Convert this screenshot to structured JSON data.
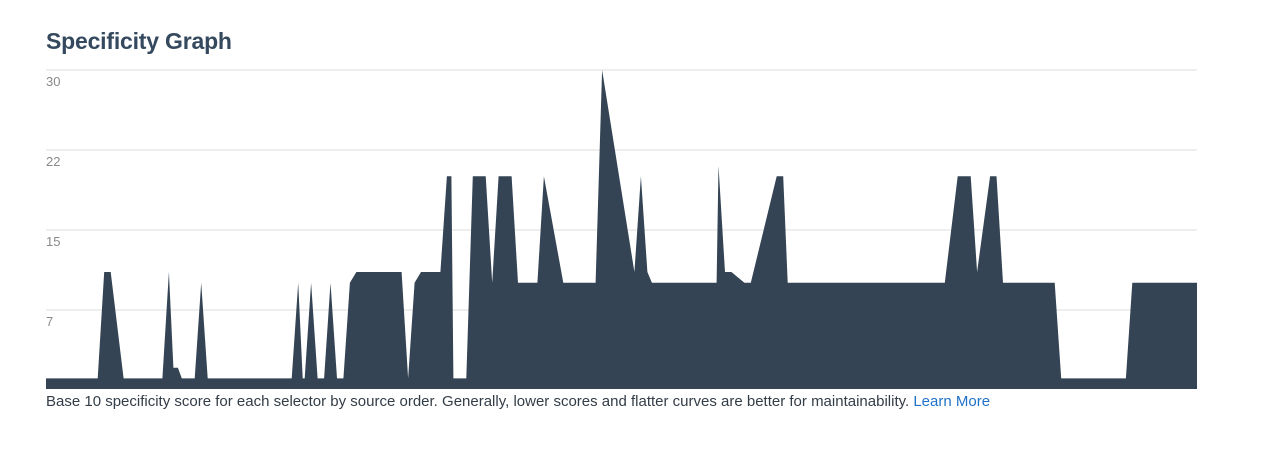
{
  "page": {
    "title": "Specificity Graph"
  },
  "caption": {
    "text": "Base 10 specificity score for each selector by source order. Generally, lower scores and flatter curves are better for maintainability.",
    "link_label": "Learn More"
  },
  "colors": {
    "area": "#344454",
    "grid": "#dcdcdc",
    "tick": "#8a8a8a",
    "link": "#1f72c8"
  },
  "chart_data": {
    "type": "area",
    "title": "Specificity Graph",
    "xlabel": "",
    "ylabel": "",
    "y_ticks": [
      30,
      22,
      15,
      7
    ],
    "ylim": [
      0,
      30
    ],
    "grid": true,
    "x": [
      0,
      8,
      9,
      10,
      12,
      18,
      19,
      19.7,
      20.4,
      21,
      23,
      24,
      25,
      26,
      27,
      29,
      31,
      32,
      38,
      39,
      39.7,
      40,
      41,
      42,
      43,
      44,
      45,
      46,
      47,
      48,
      49,
      50,
      55,
      56,
      57,
      58,
      61,
      62,
      62.7,
      63,
      65,
      66,
      68,
      69,
      70,
      72,
      73,
      75,
      76,
      77,
      80,
      82,
      85,
      86,
      91,
      92,
      93,
      93.7,
      94,
      95,
      96,
      100,
      103,
      103.7,
      104,
      105,
      106,
      108,
      109,
      113,
      114,
      114.7,
      115,
      116,
      117,
      118,
      120,
      121,
      125,
      126,
      130,
      137,
      138,
      139,
      141,
      143,
      144,
      146,
      147,
      148,
      156,
      157,
      158,
      160,
      161,
      163,
      164,
      167,
      168,
      171,
      172,
      178
    ],
    "y": [
      1,
      1,
      11,
      11,
      1,
      1,
      11,
      2,
      2,
      1,
      1,
      10,
      1,
      1,
      1,
      1,
      1,
      1,
      1,
      10,
      1,
      1,
      10,
      1,
      1,
      10,
      1,
      1,
      10,
      11,
      11,
      11,
      11,
      1,
      10,
      11,
      11,
      20,
      20,
      1,
      1,
      20,
      20,
      10,
      20,
      20,
      10,
      10,
      10,
      20,
      10,
      10,
      10,
      30,
      11,
      20,
      11,
      10,
      10,
      10,
      10,
      10,
      10,
      10,
      21,
      11,
      11,
      10,
      10,
      20,
      20,
      10,
      10,
      10,
      10,
      10,
      10,
      10,
      10,
      10,
      10,
      10,
      10,
      10,
      20,
      20,
      11,
      20,
      20,
      10,
      10,
      1,
      1,
      1,
      1,
      1,
      1,
      1,
      10,
      10,
      10,
      10
    ]
  }
}
